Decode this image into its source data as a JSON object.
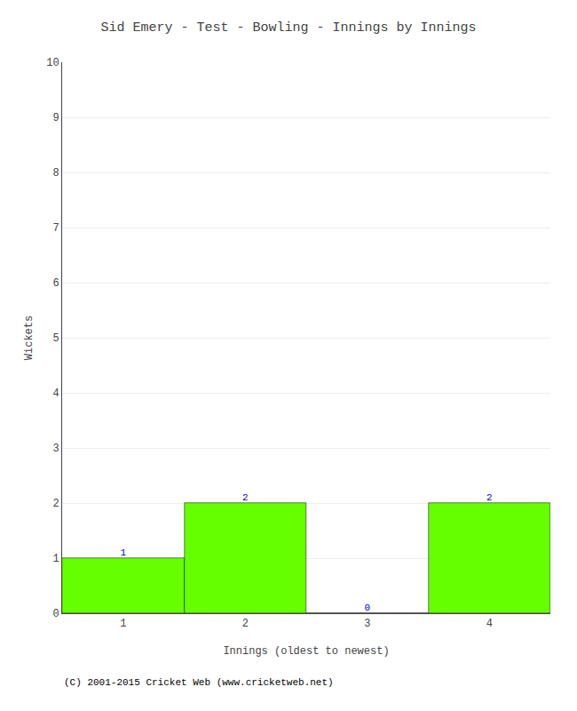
{
  "chart_data": {
    "type": "bar",
    "title": "Sid Emery - Test - Bowling - Innings by Innings",
    "x_label": "Innings (oldest to newest)",
    "y_label": "Wickets",
    "x": [
      1,
      2,
      3,
      4
    ],
    "values": [
      1,
      2,
      0,
      2
    ],
    "color": "#66ff00",
    "xlim": [
      0.5,
      4.5
    ],
    "xticks": [
      1,
      2,
      3,
      4
    ],
    "ylim": [
      0,
      10
    ],
    "yticks": [
      0,
      1,
      2,
      3,
      4,
      5,
      6,
      7,
      8,
      9,
      10
    ],
    "grid": true,
    "data_labels": true,
    "annotations": [
      "(C) 2001-2015 Cricket Web (www.cricketweb.net)"
    ]
  }
}
